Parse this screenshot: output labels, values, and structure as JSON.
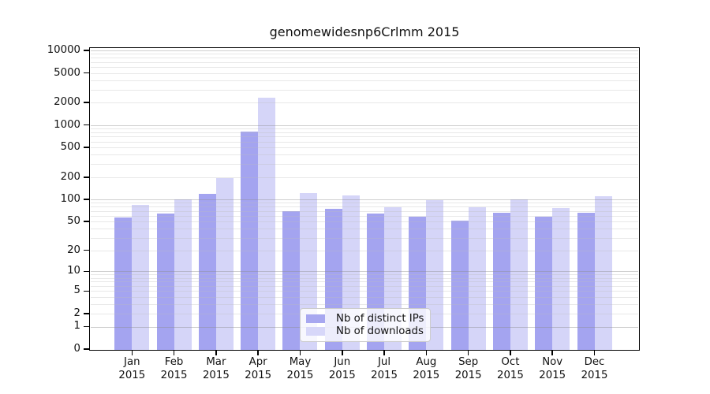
{
  "figure": {
    "title": "genomewidesnp6Crlmm 2015"
  },
  "chart_data": {
    "type": "bar",
    "title": "genomewidesnp6Crlmm 2015",
    "xlabel": "",
    "ylabel": "",
    "months": [
      "Jan",
      "Feb",
      "Mar",
      "Apr",
      "May",
      "Jun",
      "Jul",
      "Aug",
      "Sep",
      "Oct",
      "Nov",
      "Dec"
    ],
    "year_label": "2015",
    "categories": [
      "Jan 2015",
      "Feb 2015",
      "Mar 2015",
      "Apr 2015",
      "May 2015",
      "Jun 2015",
      "Jul 2015",
      "Aug 2015",
      "Sep 2015",
      "Oct 2015",
      "Nov 2015",
      "Dec 2015"
    ],
    "series": [
      {
        "name": "Nb of distinct IPs",
        "color": "#a7a7f0",
        "values": [
          57,
          65,
          120,
          815,
          70,
          74,
          64,
          58,
          51,
          66,
          59,
          66
        ]
      },
      {
        "name": "Nb of downloads",
        "color": "#d7d7f9",
        "values": [
          84,
          100,
          195,
          2330,
          123,
          113,
          79,
          97,
          78,
          101,
          76,
          110
        ]
      }
    ],
    "y_ticks": [
      0,
      1,
      2,
      5,
      10,
      20,
      50,
      100,
      200,
      500,
      1000,
      2000,
      5000,
      10000
    ],
    "ylim": [
      0,
      10000
    ],
    "y_scale": "log10(value+1)",
    "grid": "horizontal, major decades darker + log minors lighter, drawn over bars",
    "legend_position": "inside lower-center",
    "colors": {
      "axis": "#000000",
      "major_grid": "#c9c9c9",
      "minor_grid": "#ececec",
      "background": "#ffffff"
    }
  }
}
